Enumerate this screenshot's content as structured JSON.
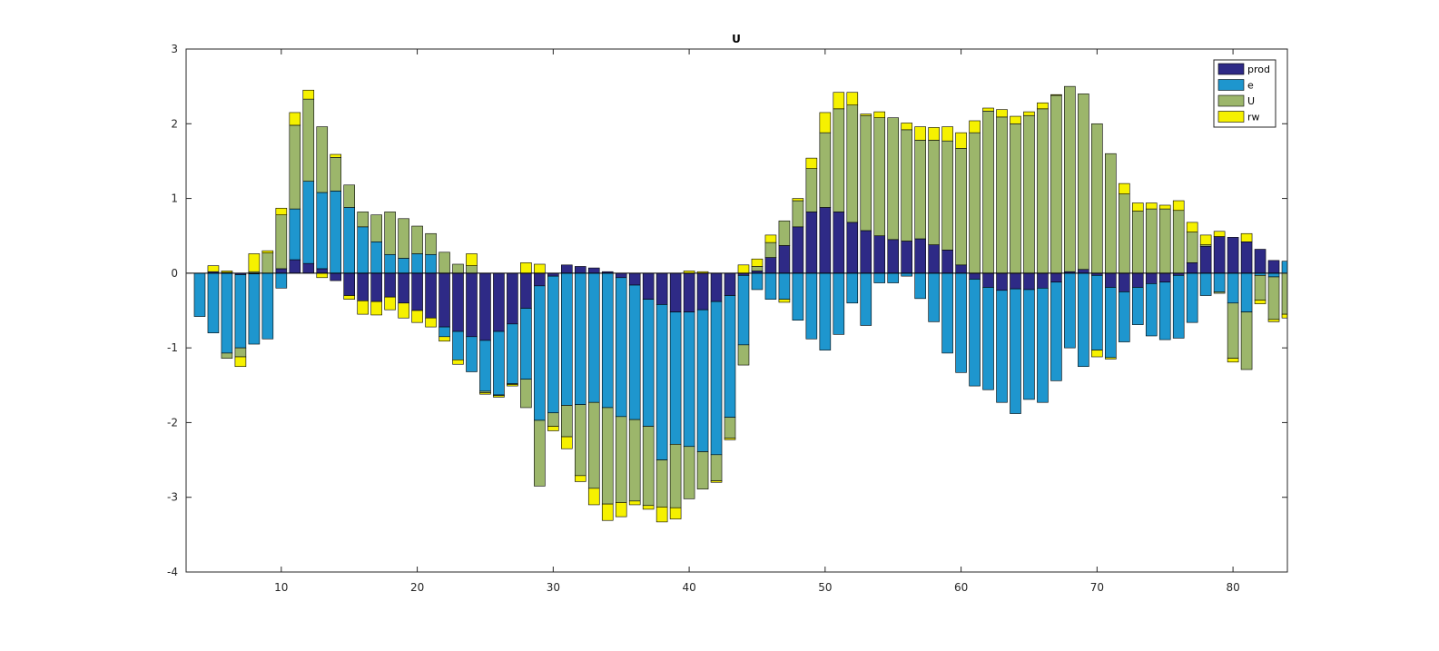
{
  "chart_data": {
    "type": "bar",
    "stacked": true,
    "title": "U",
    "xlabel": "",
    "ylabel": "",
    "xlim": [
      3,
      84
    ],
    "ylim": [
      -4,
      3
    ],
    "xticks": [
      10,
      20,
      30,
      40,
      50,
      60,
      70,
      80
    ],
    "yticks": [
      -4,
      -3,
      -2,
      -1,
      0,
      1,
      2,
      3
    ],
    "grid": false,
    "legend_position": "top-right",
    "x": [
      4,
      5,
      6,
      7,
      8,
      9,
      10,
      11,
      12,
      13,
      14,
      15,
      16,
      17,
      18,
      19,
      20,
      21,
      22,
      23,
      24,
      25,
      26,
      27,
      28,
      29,
      30,
      31,
      32,
      33,
      34,
      35,
      36,
      37,
      38,
      39,
      40,
      41,
      42,
      43,
      44,
      45,
      46,
      47,
      48,
      49,
      50,
      51,
      52,
      53,
      54,
      55,
      56,
      57,
      58,
      59,
      60,
      61,
      62,
      63,
      64,
      65,
      66,
      67,
      68,
      69,
      70,
      71,
      72,
      73,
      74,
      75,
      76,
      77,
      78,
      79,
      80,
      81,
      82,
      83,
      84
    ],
    "series": [
      {
        "name": "prod",
        "color": "#2E2A86",
        "values": [
          0.0,
          0.02,
          0.01,
          -0.02,
          -0.01,
          0.0,
          0.06,
          0.18,
          0.13,
          0.06,
          -0.1,
          -0.3,
          -0.37,
          -0.38,
          -0.32,
          -0.4,
          -0.5,
          -0.6,
          -0.72,
          -0.78,
          -0.85,
          -0.9,
          -0.78,
          -0.68,
          -0.47,
          -0.17,
          -0.04,
          0.11,
          0.09,
          0.07,
          0.02,
          -0.06,
          -0.16,
          -0.35,
          -0.42,
          -0.52,
          -0.52,
          -0.49,
          -0.38,
          -0.3,
          -0.03,
          0.03,
          0.21,
          0.37,
          0.62,
          0.82,
          0.88,
          0.82,
          0.68,
          0.57,
          0.5,
          0.45,
          0.43,
          0.46,
          0.38,
          0.31,
          0.11,
          -0.08,
          -0.19,
          -0.23,
          -0.21,
          -0.22,
          -0.2,
          -0.12,
          0.02,
          0.05,
          -0.03,
          -0.19,
          -0.25,
          -0.19,
          -0.14,
          -0.12,
          -0.03,
          0.14,
          0.36,
          0.49,
          0.48,
          0.42,
          0.32,
          0.17,
          0.0
        ]
      },
      {
        "name": "e",
        "color": "#1E96CE",
        "values": [
          -0.58,
          -0.8,
          -1.07,
          -0.98,
          -0.94,
          -0.88,
          -0.2,
          0.68,
          1.1,
          1.02,
          1.1,
          0.88,
          0.62,
          0.42,
          0.25,
          0.2,
          0.26,
          0.25,
          -0.13,
          -0.38,
          -0.47,
          -0.68,
          -0.85,
          -0.8,
          -0.95,
          -1.8,
          -1.83,
          -1.77,
          -1.76,
          -1.73,
          -1.8,
          -1.86,
          -1.8,
          -1.7,
          -2.08,
          -1.77,
          -1.8,
          -1.9,
          -2.05,
          -1.63,
          -0.93,
          -0.22,
          -0.35,
          -0.35,
          -0.63,
          -0.88,
          -1.03,
          -0.82,
          -0.4,
          -0.7,
          -0.13,
          -0.13,
          -0.04,
          -0.34,
          -0.65,
          -1.07,
          -1.33,
          -1.43,
          -1.37,
          -1.5,
          -1.67,
          -1.47,
          -1.53,
          -1.32,
          -1.0,
          -1.25,
          -1.0,
          -0.94,
          -0.67,
          -0.5,
          -0.7,
          -0.77,
          -0.84,
          -0.66,
          -0.3,
          -0.25,
          -0.4,
          -0.52,
          -0.03,
          -0.05,
          0.16
        ]
      },
      {
        "name": "U",
        "color": "#9CB66B",
        "values": [
          0.0,
          0.0,
          -0.07,
          -0.12,
          0.02,
          0.27,
          0.72,
          1.12,
          1.1,
          0.88,
          0.45,
          0.3,
          0.2,
          0.36,
          0.57,
          0.53,
          0.37,
          0.28,
          0.28,
          0.12,
          0.1,
          -0.02,
          -0.01,
          -0.01,
          -0.38,
          -0.88,
          -0.18,
          -0.42,
          -0.95,
          -1.15,
          -1.29,
          -1.15,
          -1.09,
          -1.06,
          -0.63,
          -0.85,
          -0.7,
          -0.5,
          -0.35,
          -0.28,
          -0.27,
          0.06,
          0.2,
          0.33,
          0.35,
          0.58,
          1.0,
          1.38,
          1.57,
          1.54,
          1.58,
          1.63,
          1.49,
          1.32,
          1.4,
          1.46,
          1.56,
          1.88,
          2.17,
          2.09,
          2.0,
          2.11,
          2.2,
          2.38,
          2.48,
          2.35,
          2.0,
          1.6,
          1.06,
          0.83,
          0.86,
          0.86,
          0.84,
          0.41,
          0.02,
          -0.02,
          -0.74,
          -0.77,
          -0.33,
          -0.57,
          -0.55
        ]
      },
      {
        "name": "rw",
        "color": "#F6F100",
        "values": [
          0.0,
          0.08,
          0.02,
          -0.13,
          0.24,
          0.03,
          0.09,
          0.17,
          0.12,
          -0.06,
          0.04,
          -0.05,
          -0.18,
          -0.18,
          -0.17,
          -0.2,
          -0.16,
          -0.12,
          -0.06,
          -0.06,
          0.16,
          -0.02,
          -0.02,
          -0.02,
          0.14,
          0.12,
          -0.06,
          -0.16,
          -0.08,
          -0.22,
          -0.22,
          -0.19,
          -0.05,
          -0.05,
          -0.2,
          -0.15,
          0.03,
          0.02,
          -0.02,
          -0.02,
          0.11,
          0.1,
          0.1,
          -0.04,
          0.03,
          0.14,
          0.27,
          0.22,
          0.17,
          0.02,
          0.08,
          0.0,
          0.09,
          0.18,
          0.17,
          0.19,
          0.21,
          0.16,
          0.04,
          0.1,
          0.1,
          0.05,
          0.08,
          0.01,
          0.0,
          0.0,
          -0.09,
          -0.02,
          0.14,
          0.11,
          0.08,
          0.05,
          0.13,
          0.13,
          0.13,
          0.07,
          -0.05,
          0.11,
          -0.05,
          -0.03,
          -0.05
        ]
      }
    ]
  }
}
